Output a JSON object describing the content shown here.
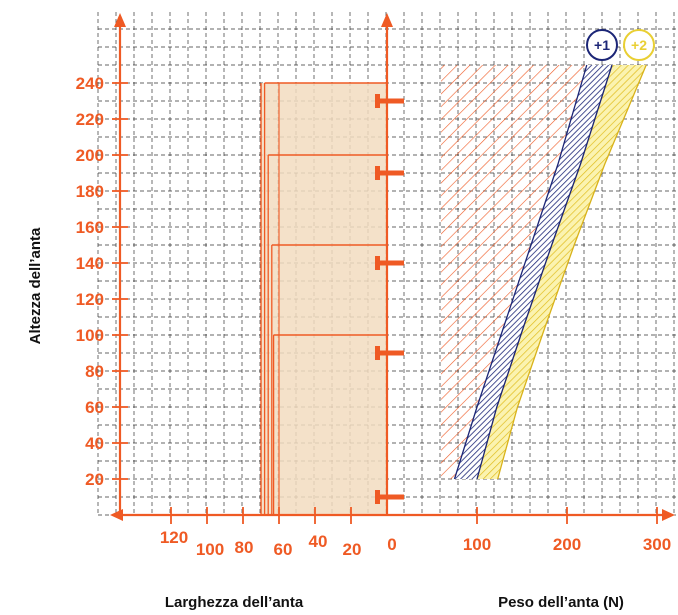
{
  "chart_data": {
    "type": "line",
    "title": "",
    "ylabel": "Altezza dell’anta",
    "xlabel_left": "Larghezza dell’anta",
    "xlabel_right": "Peso dell’anta (N)",
    "height_ticks": [
      "20",
      "40",
      "60",
      "80",
      "100",
      "120",
      "140",
      "160",
      "180",
      "200",
      "220",
      "240"
    ],
    "width_ticks": [
      "120",
      "100",
      "80",
      "60",
      "40",
      "20",
      "0"
    ],
    "weight_ticks": [
      "100",
      "200",
      "300"
    ],
    "ylim": [
      0,
      270
    ],
    "weight_xlim": [
      0,
      300
    ],
    "width_xlim": [
      0,
      130
    ],
    "grid": true,
    "colors": {
      "axis": "#ef5a24",
      "grid": "#333333",
      "panel_fill": "#f2dcc0",
      "series_1": "#1c2677",
      "series_2": "#e9cf33",
      "hatch": "#ef5a24"
    },
    "badges": [
      {
        "label": "+1",
        "color": "#1c2677"
      },
      {
        "label": "+2",
        "color": "#e9cf33"
      }
    ],
    "width_panel": {
      "outer_width": 70,
      "inner_width": 60,
      "height_steps": [
        240,
        200,
        150,
        100
      ],
      "step_widths": [
        68,
        66,
        64,
        63
      ],
      "hinge_heights": [
        10,
        90,
        140,
        190,
        230
      ]
    },
    "series": [
      {
        "name": "+1",
        "left_edge": {
          "x": [
            75,
            100,
            130,
            160,
            190,
            222
          ],
          "y": [
            20,
            60,
            105,
            150,
            195,
            250
          ]
        },
        "right_edge": {
          "x": [
            100,
            122,
            152,
            183,
            215,
            250
          ],
          "y": [
            20,
            60,
            105,
            150,
            195,
            250
          ]
        }
      },
      {
        "name": "+2",
        "left_edge": {
          "x": [
            100,
            122,
            152,
            183,
            215,
            250
          ],
          "y": [
            20,
            60,
            105,
            150,
            195,
            250
          ]
        },
        "right_edge": {
          "x": [
            123,
            145,
            176,
            208,
            242,
            288
          ],
          "y": [
            20,
            60,
            105,
            150,
            195,
            250
          ]
        }
      }
    ],
    "hatched_region": {
      "x_min": 60,
      "y_min": 20,
      "y_max": 250
    }
  }
}
